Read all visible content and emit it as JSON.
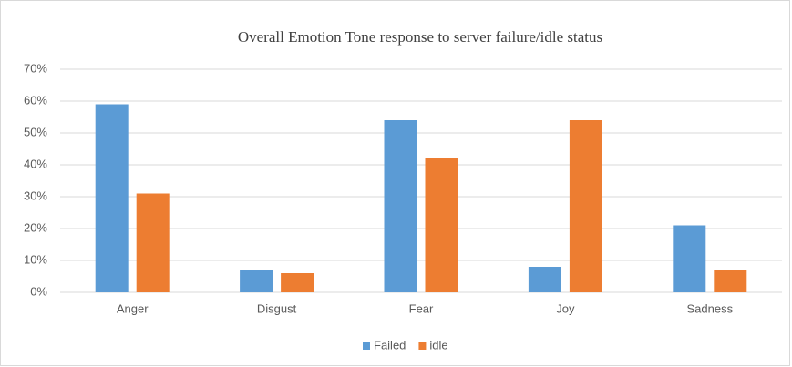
{
  "chart_data": {
    "type": "bar",
    "title": "Overall Emotion Tone response to server failure/idle status",
    "categories": [
      "Anger",
      "Disgust",
      "Fear",
      "Joy",
      "Sadness"
    ],
    "series": [
      {
        "name": "Failed",
        "color": "#5b9bd5",
        "values": [
          59,
          7,
          54,
          8,
          21
        ]
      },
      {
        "name": "idle",
        "color": "#ed7d31",
        "values": [
          31,
          6,
          42,
          54,
          7
        ]
      }
    ],
    "ylim": [
      0,
      70
    ],
    "yticks": [
      {
        "value": 0,
        "label": "0%"
      },
      {
        "value": 10,
        "label": "10%"
      },
      {
        "value": 20,
        "label": "20%"
      },
      {
        "value": 30,
        "label": "30%"
      },
      {
        "value": 40,
        "label": "40%"
      },
      {
        "value": 50,
        "label": "50%"
      },
      {
        "value": 60,
        "label": "60%"
      },
      {
        "value": 70,
        "label": "70%"
      }
    ],
    "grid": true,
    "legend": "bottom"
  }
}
